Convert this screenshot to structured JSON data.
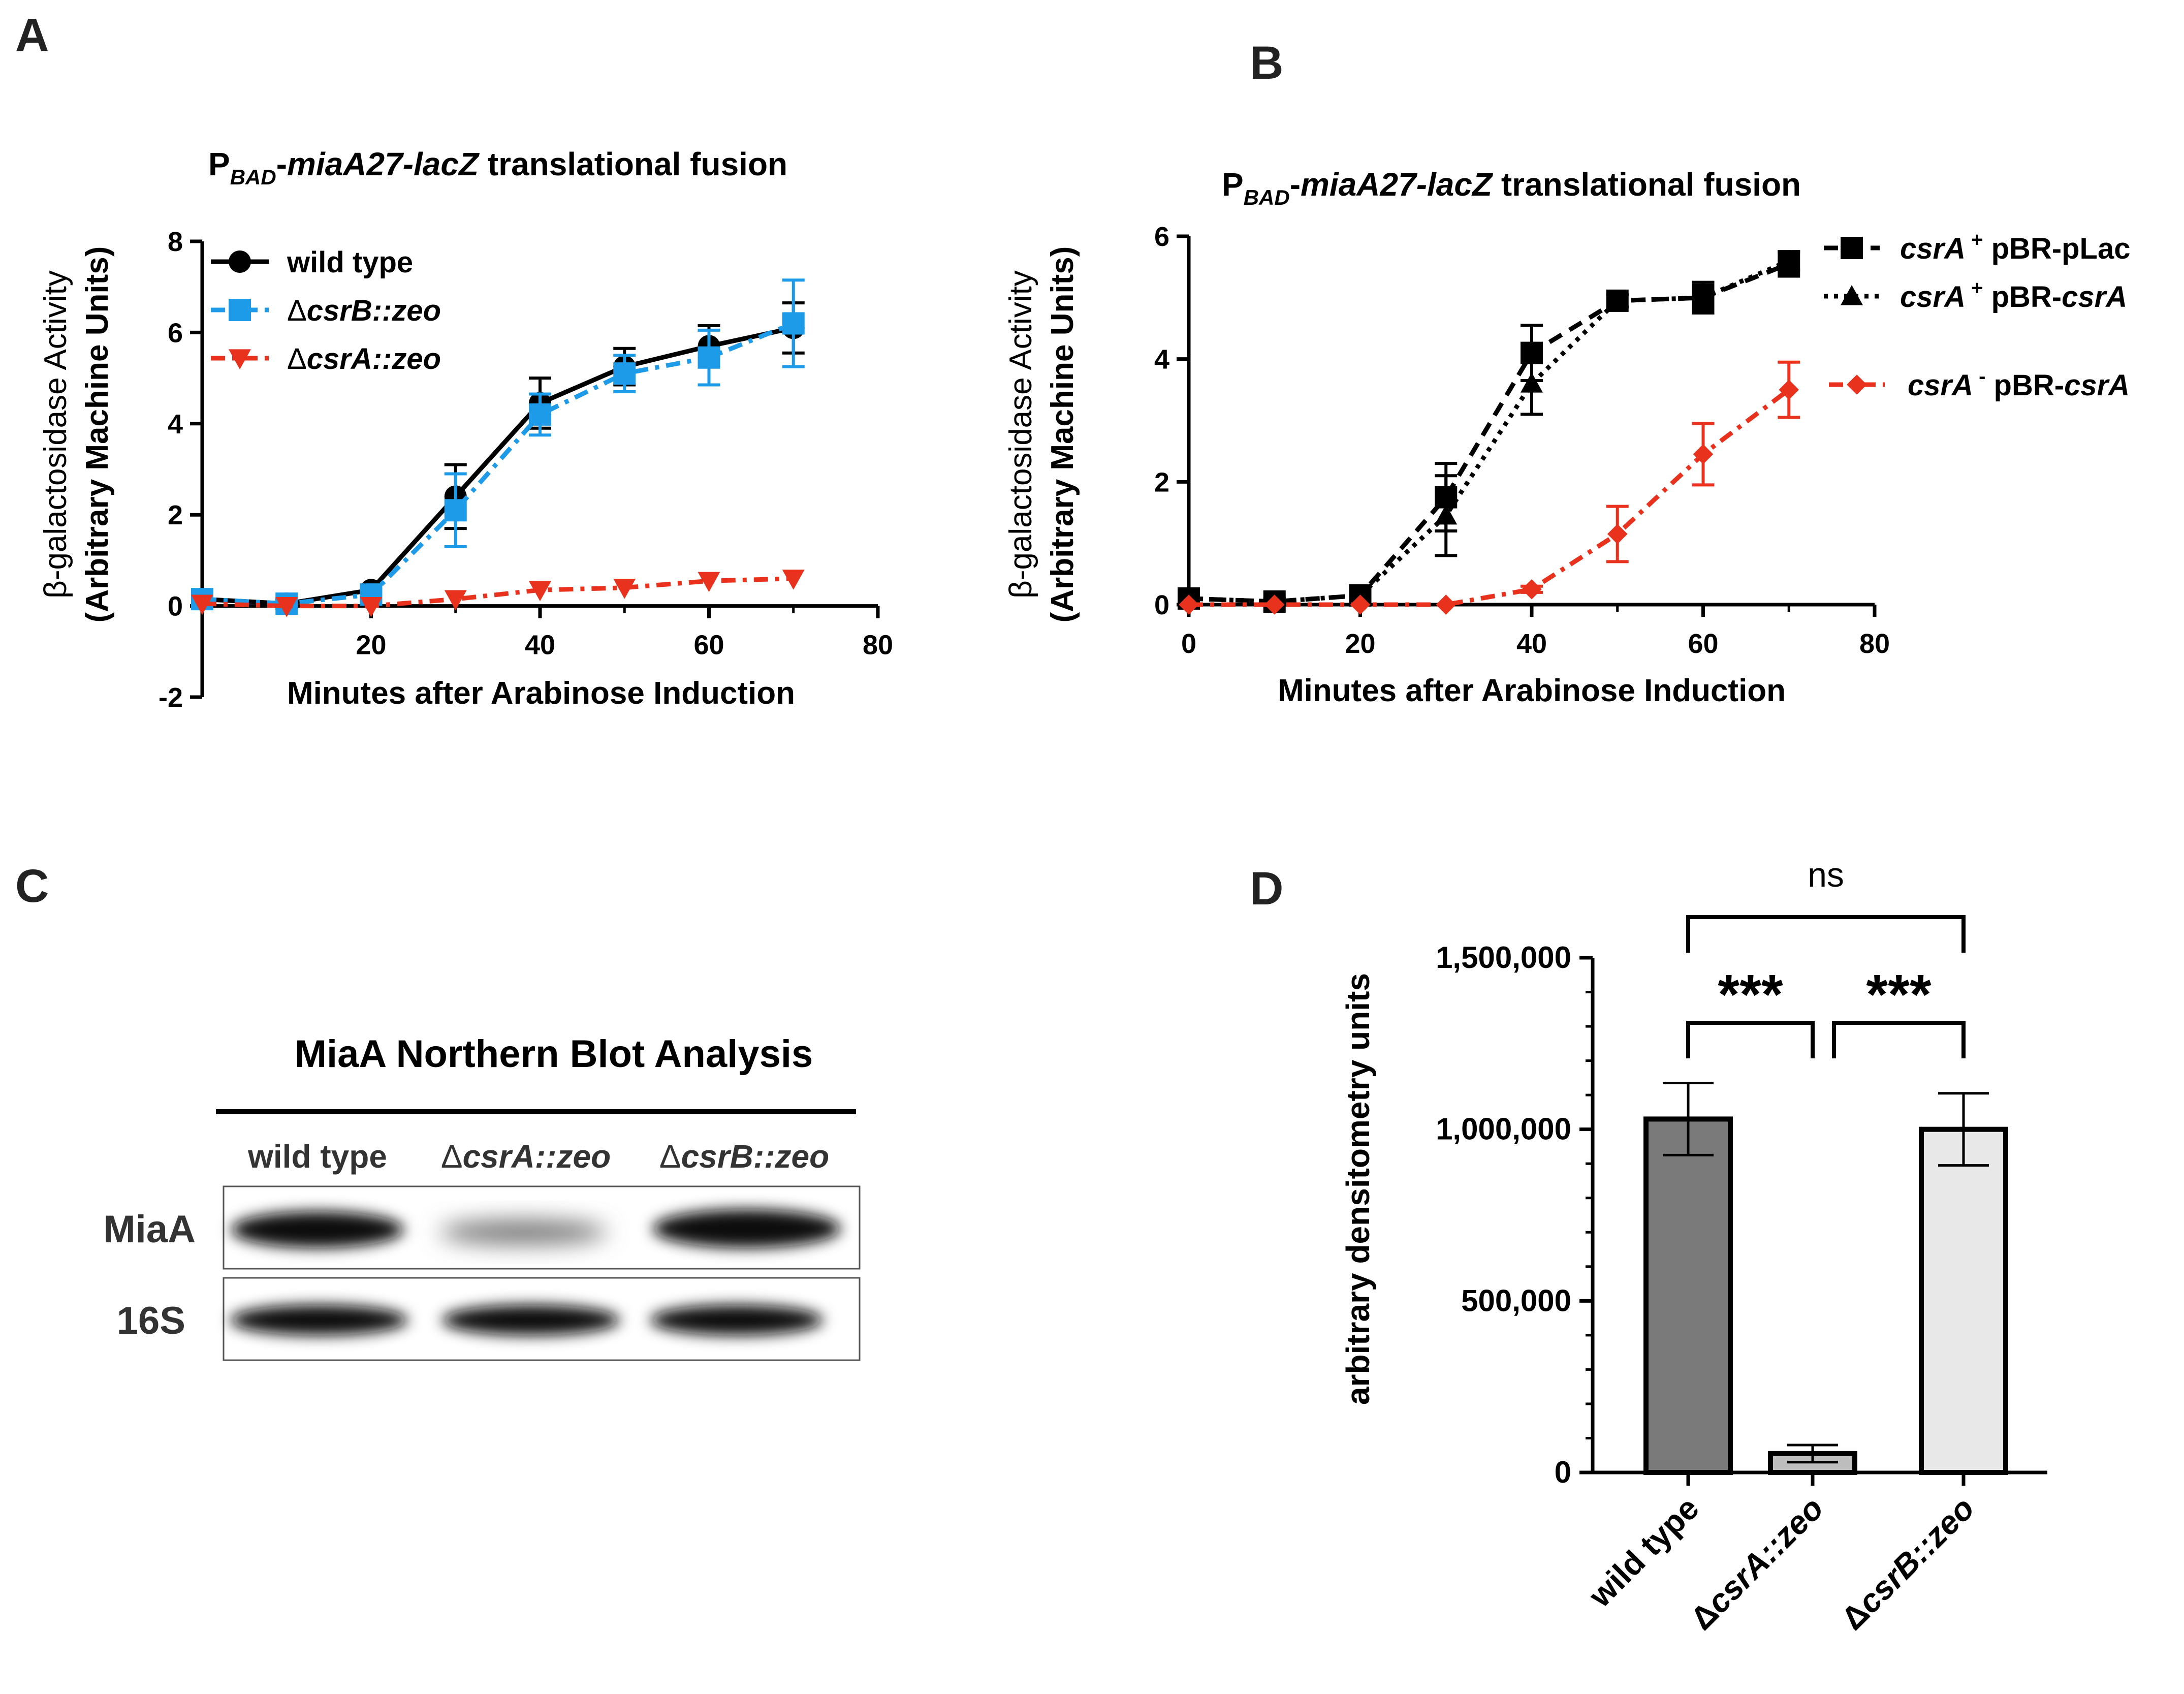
{
  "panels": {
    "a": {
      "letter": "A",
      "title_main": "P",
      "title_sub": "BAD",
      "title_rest1": "-",
      "title_italic": "miaA27-lacZ",
      "title_rest2": " translational fusion",
      "ylabel_line1": "β-galactosidase Activity",
      "ylabel_line2": "(Arbitrary Machine Units)",
      "xlabel": "Minutes after Arabinose Induction"
    },
    "b": {
      "letter": "B",
      "title_main": "P",
      "title_sub": "BAD",
      "title_rest1": "-",
      "title_italic": "miaA27-lacZ",
      "title_rest2": " translational fusion",
      "ylabel_line1": "β-galactosidase Activity",
      "ylabel_line2": "(Arbitrary Machine Units)",
      "xlabel": "Minutes after Arabinose Induction"
    },
    "c": {
      "letter": "C",
      "title": "MiaA Northern Blot Analysis",
      "lanes": [
        {
          "prefix": "",
          "italic": "",
          "suffix": "wild type"
        },
        {
          "prefix": "Δ",
          "italic": "csrA",
          "suffix": "::zeo"
        },
        {
          "prefix": "Δ",
          "italic": "csrB",
          "suffix": "::zeo"
        }
      ],
      "rows": [
        "MiaA",
        "16S"
      ]
    },
    "d": {
      "letter": "D",
      "ylabel": "arbitrary densitometry units",
      "significance": [
        "ns",
        "***",
        "***"
      ]
    }
  },
  "chart_data": [
    {
      "type": "line",
      "x": [
        0,
        10,
        20,
        30,
        40,
        50,
        60,
        70
      ],
      "xlim": [
        0,
        80
      ],
      "ylim": [
        -2,
        8
      ],
      "xticks": [
        "20",
        "40",
        "60",
        "80"
      ],
      "yticks": [
        "-2",
        "0",
        "2",
        "4",
        "6",
        "8"
      ],
      "legend_position": "top-left",
      "series": [
        {
          "name": "wild type",
          "values": [
            0.15,
            0.05,
            0.35,
            2.4,
            4.45,
            5.25,
            5.7,
            6.1
          ],
          "errors": [
            0.1,
            0.1,
            0.1,
            0.7,
            0.55,
            0.4,
            0.45,
            0.55
          ],
          "color": "#000000",
          "dash": "solid",
          "marker": "circle"
        },
        {
          "name_prefix": "Δ",
          "name_italic": "csrB::zeo",
          "name_suffix": "",
          "values": [
            0.15,
            0.05,
            0.25,
            2.1,
            4.2,
            5.1,
            5.45,
            6.2
          ],
          "errors": [
            0.1,
            0.1,
            0.1,
            0.8,
            0.45,
            0.4,
            0.6,
            0.95
          ],
          "color": "#1e9be8",
          "dash": "dash-dot",
          "marker": "square"
        },
        {
          "name_prefix": "Δ",
          "name_italic": "csrA",
          "name_suffix": "::zeo",
          "values": [
            0.05,
            0.0,
            0.0,
            0.15,
            0.35,
            0.4,
            0.55,
            0.6
          ],
          "errors": [
            0,
            0,
            0,
            0,
            0,
            0,
            0,
            0
          ],
          "color": "#e8321e",
          "dash": "dash-dot",
          "marker": "triangle-down"
        }
      ]
    },
    {
      "type": "line",
      "x": [
        0,
        10,
        20,
        30,
        40,
        50,
        60,
        70
      ],
      "xlim": [
        0,
        80
      ],
      "ylim": [
        0,
        6
      ],
      "xticks": [
        "0",
        "20",
        "40",
        "60",
        "80"
      ],
      "yticks": [
        "0",
        "2",
        "4",
        "6"
      ],
      "legend_position": "top-right",
      "series": [
        {
          "name_italic": "csrA",
          "name_sup": "+",
          "name_suffix": " pBR-pLac",
          "values": [
            0.1,
            0.05,
            0.15,
            1.75,
            4.1,
            4.95,
            5.0,
            5.55
          ],
          "errors": [
            0.05,
            0.05,
            0.05,
            0.55,
            0.45,
            0.1,
            0.25,
            0.2
          ],
          "color": "#000000",
          "dash": "dashed",
          "marker": "square"
        },
        {
          "name_italic": "csrA",
          "name_sup": "+",
          "name_suffix": " pBR-",
          "name_italic2": "csrA",
          "values": [
            0.1,
            0.05,
            0.15,
            1.45,
            3.6,
            4.95,
            5.0,
            5.6
          ],
          "errors": [
            0.05,
            0.05,
            0.05,
            0.65,
            0.5,
            0.1,
            0.2,
            0.15
          ],
          "color": "#000000",
          "dash": "dotted",
          "marker": "triangle-up"
        },
        {
          "name_italic": "csrA",
          "name_sup": "-",
          "name_suffix": " pBR-",
          "name_italic2": "csrA",
          "values": [
            0.0,
            0.0,
            0.0,
            0.0,
            0.25,
            1.15,
            2.45,
            3.5
          ],
          "errors": [
            0,
            0,
            0,
            0,
            0.05,
            0.45,
            0.5,
            0.45
          ],
          "color": "#e8321e",
          "dash": "dash-dot",
          "marker": "diamond"
        }
      ]
    },
    {
      "type": "bar",
      "categories": [
        {
          "prefix": "",
          "italic": "",
          "suffix": "wild type"
        },
        {
          "prefix": "Δ",
          "italic": "csrA",
          "suffix": "::zeo"
        },
        {
          "prefix": "Δ",
          "italic": "csrB",
          "suffix": "::zeo"
        }
      ],
      "values": [
        1030000,
        55000,
        1000000
      ],
      "errors": [
        105000,
        25000,
        105000
      ],
      "colors": [
        "#7a7a7a",
        "#bdbdbd",
        "#e8e8e8"
      ],
      "ylim": [
        0,
        1500000
      ],
      "yticks": [
        "0",
        "500,000",
        "1,000,000",
        "1,500,000"
      ]
    }
  ]
}
